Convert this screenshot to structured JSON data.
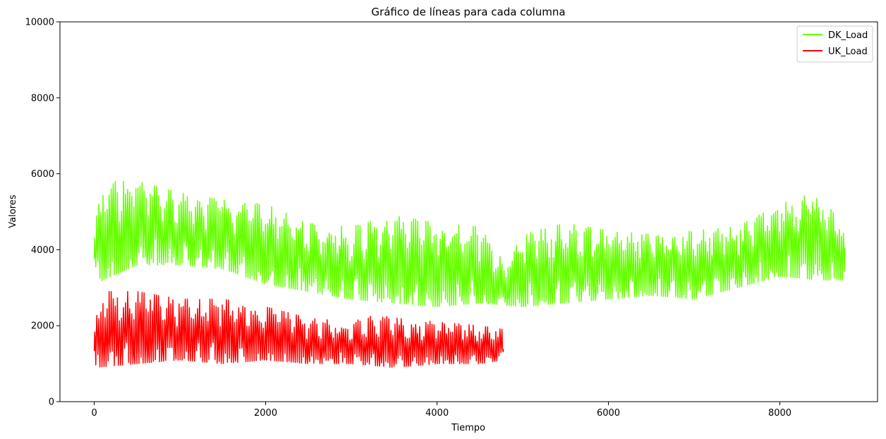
{
  "chart_data": {
    "type": "line",
    "title": "Gráfico de líneas para cada columna",
    "xlabel": "Tiempo",
    "ylabel": "Valores",
    "xlim": [
      -400,
      9140
    ],
    "ylim": [
      0,
      10000
    ],
    "xticks": [
      0,
      2000,
      4000,
      6000,
      8000
    ],
    "yticks": [
      0,
      2000,
      4000,
      6000,
      8000,
      10000
    ],
    "grid": false,
    "legend_position": "top-right",
    "series": [
      {
        "name": "DK_Load",
        "color": "#66ff00",
        "x_range": [
          0,
          8760
        ],
        "approx_daily_min": [
          [
            0,
            3100
          ],
          [
            500,
            3600
          ],
          [
            1000,
            3600
          ],
          [
            1500,
            3500
          ],
          [
            2000,
            3100
          ],
          [
            2500,
            2900
          ],
          [
            3000,
            2700
          ],
          [
            3500,
            2600
          ],
          [
            4000,
            2500
          ],
          [
            4500,
            2600
          ],
          [
            5000,
            2500
          ],
          [
            5500,
            2600
          ],
          [
            6000,
            2700
          ],
          [
            6500,
            2800
          ],
          [
            7000,
            2700
          ],
          [
            7500,
            3000
          ],
          [
            8000,
            3300
          ],
          [
            8500,
            3200
          ],
          [
            8760,
            3200
          ]
        ],
        "approx_daily_max": [
          [
            0,
            4500
          ],
          [
            100,
            5800
          ],
          [
            500,
            5800
          ],
          [
            1000,
            5500
          ],
          [
            1500,
            5300
          ],
          [
            2000,
            5200
          ],
          [
            2500,
            4700
          ],
          [
            3000,
            4600
          ],
          [
            3500,
            4900
          ],
          [
            4000,
            4700
          ],
          [
            4500,
            4600
          ],
          [
            4800,
            3600
          ],
          [
            5000,
            4400
          ],
          [
            5500,
            4700
          ],
          [
            6000,
            4500
          ],
          [
            6500,
            4400
          ],
          [
            7000,
            4500
          ],
          [
            7500,
            4600
          ],
          [
            8000,
            5200
          ],
          [
            8400,
            5500
          ],
          [
            8760,
            4700
          ]
        ]
      },
      {
        "name": "UK_Load",
        "color": "#ff0000",
        "x_range": [
          0,
          4780
        ],
        "approx_daily_min": [
          [
            0,
            900
          ],
          [
            500,
            1000
          ],
          [
            1000,
            1100
          ],
          [
            1500,
            1000
          ],
          [
            2000,
            1100
          ],
          [
            2500,
            1000
          ],
          [
            3000,
            1000
          ],
          [
            3500,
            900
          ],
          [
            4000,
            1000
          ],
          [
            4500,
            1000
          ],
          [
            4780,
            1100
          ]
        ],
        "approx_daily_max": [
          [
            0,
            2000
          ],
          [
            100,
            2900
          ],
          [
            500,
            2900
          ],
          [
            1000,
            2700
          ],
          [
            1500,
            2700
          ],
          [
            2000,
            2500
          ],
          [
            2500,
            2200
          ],
          [
            3000,
            2100
          ],
          [
            3300,
            2300
          ],
          [
            3500,
            2200
          ],
          [
            4000,
            2100
          ],
          [
            4500,
            2000
          ],
          [
            4780,
            1900
          ]
        ]
      }
    ]
  }
}
